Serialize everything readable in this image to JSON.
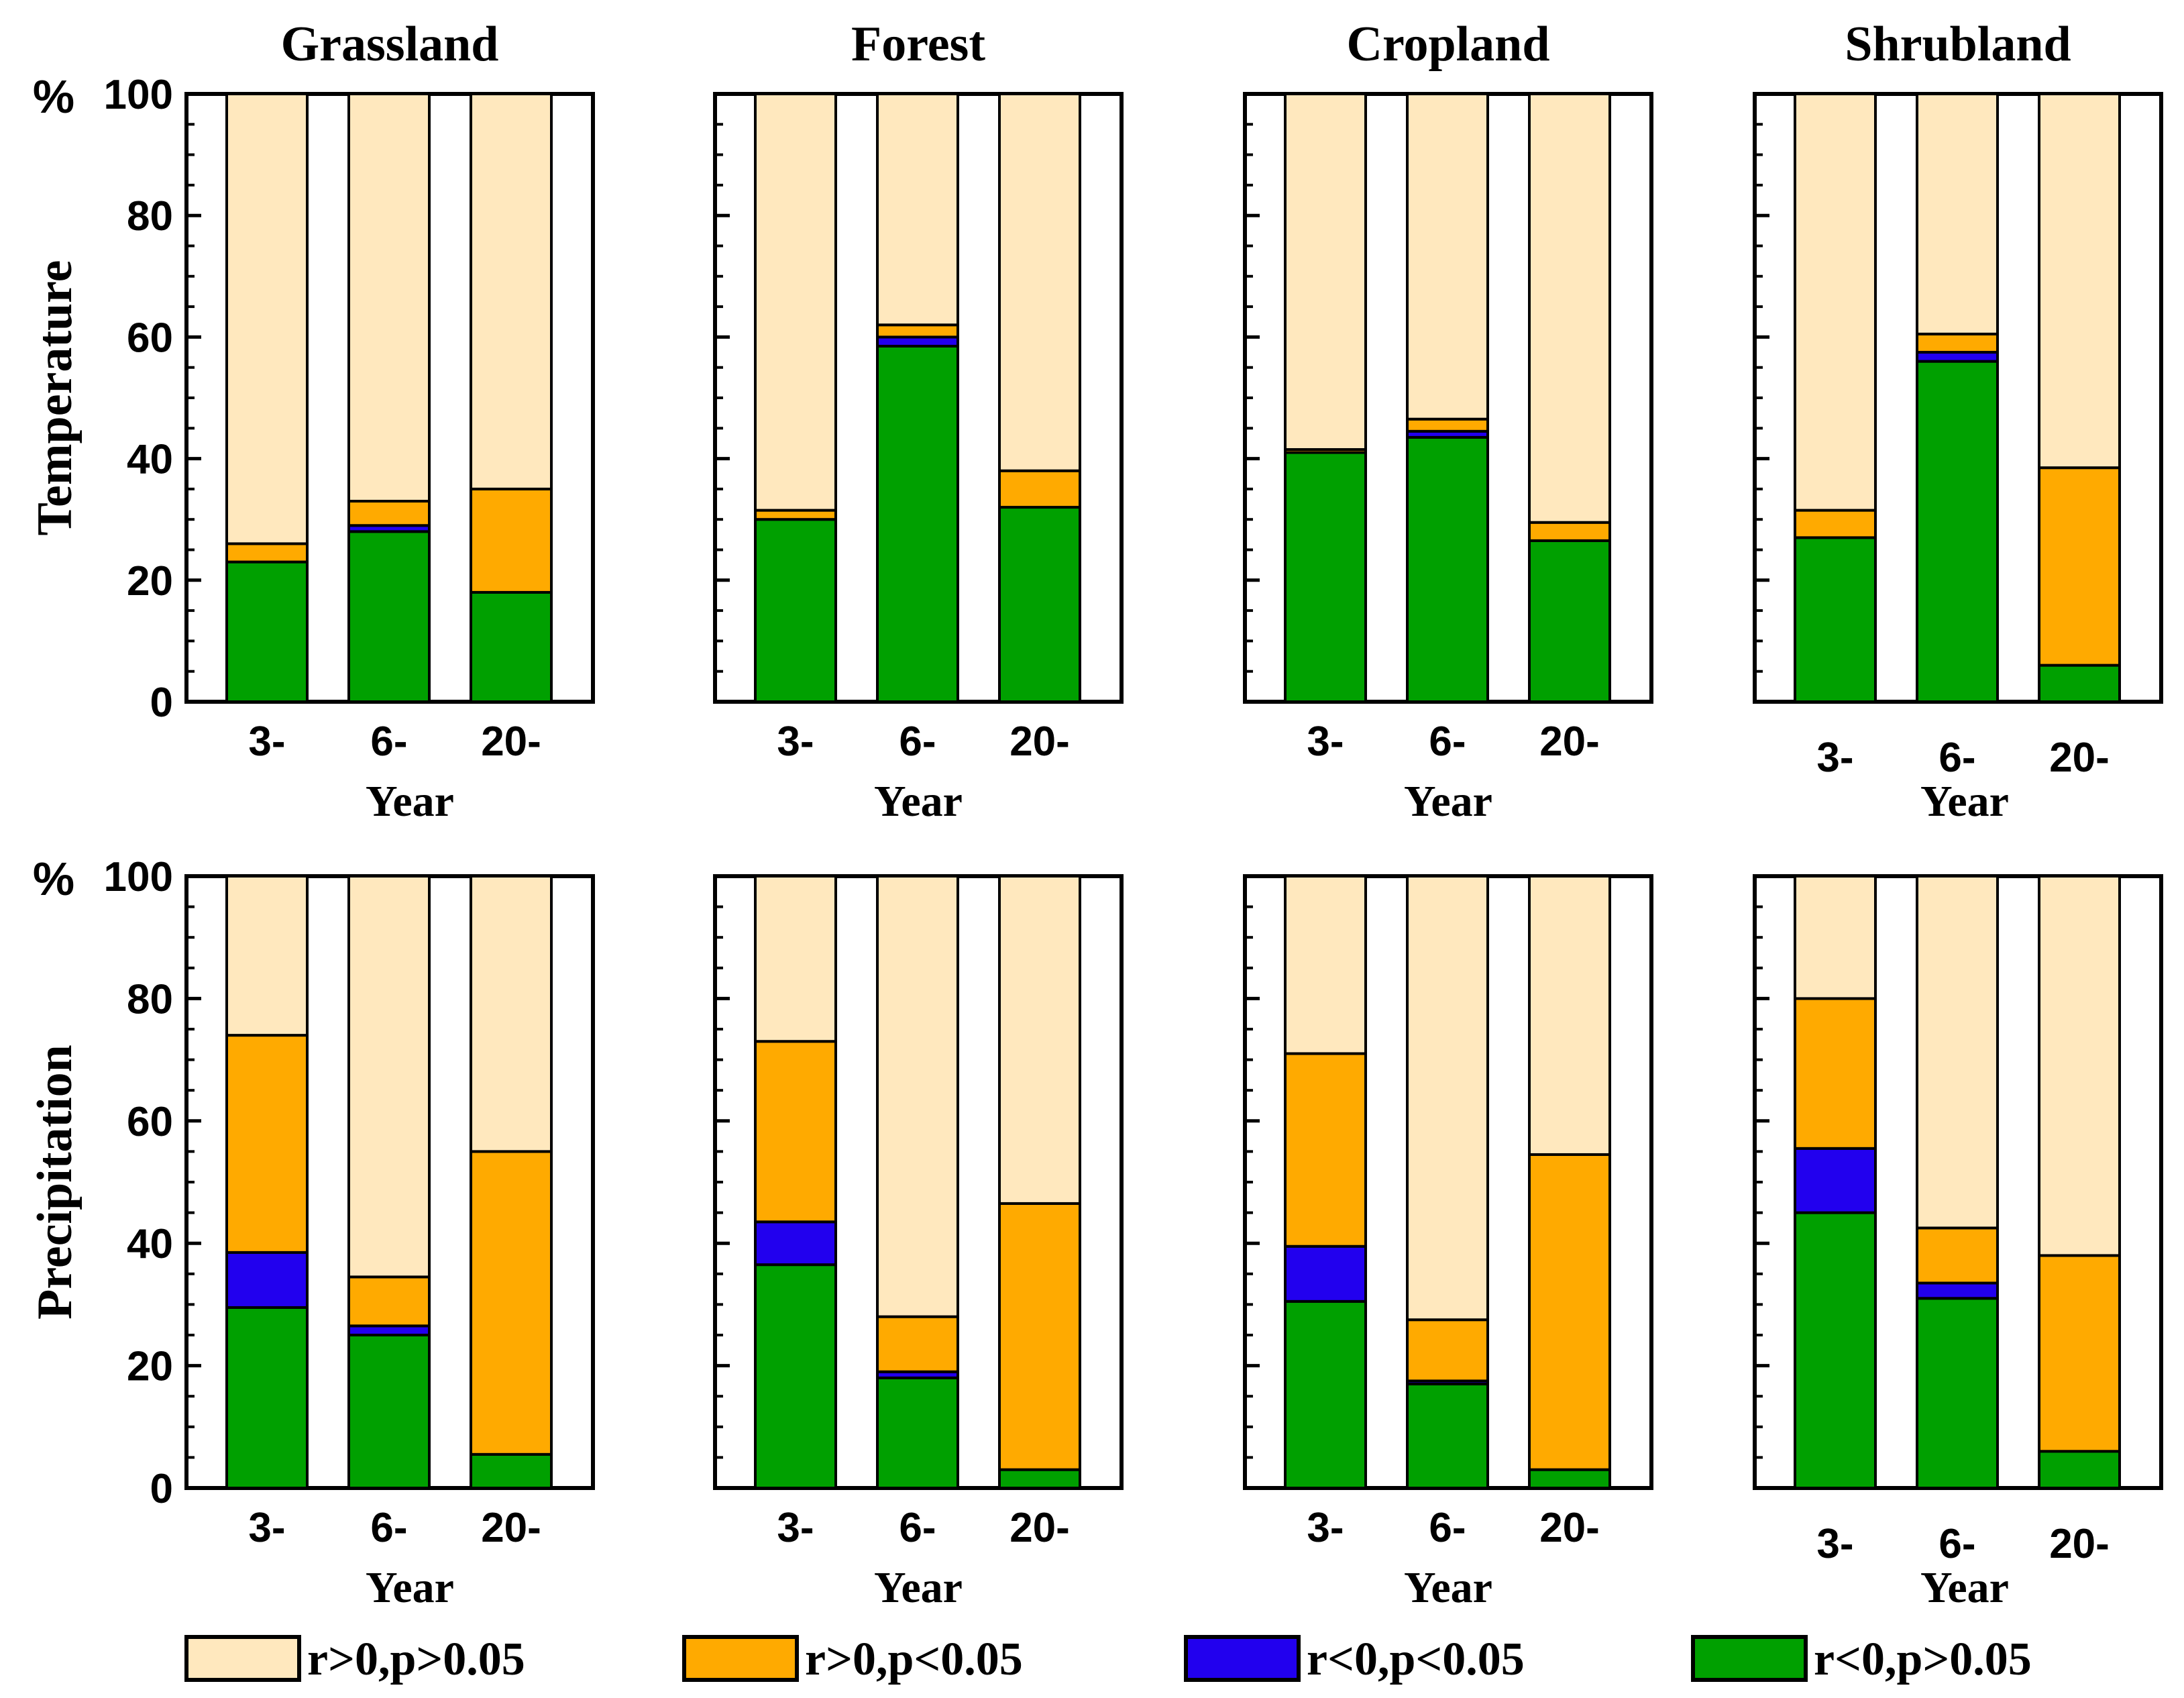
{
  "figure": {
    "legend": [
      {
        "key": "r_pos_ns",
        "label": "r>0,p>0.05",
        "color": "#FFE8BE"
      },
      {
        "key": "r_pos_sig",
        "label": "r>0,p<0.05",
        "color": "#FFAA00"
      },
      {
        "key": "r_neg_sig",
        "label": "r<0,p<0.05",
        "color": "#2200EE"
      },
      {
        "key": "r_neg_ns",
        "label": "r<0,p>0.05",
        "color": "#00A000"
      }
    ],
    "row_labels": [
      "Temperature",
      "Precipitation"
    ],
    "percent_symbol": "%"
  },
  "chart_data": [
    {
      "type": "bar",
      "stacked": true,
      "row": 0,
      "col": 0,
      "title": "Grassland",
      "ylabel": "Temperature",
      "xlabel": "Year",
      "categories": [
        "3-",
        "6-",
        "20-"
      ],
      "ylim": [
        0,
        100
      ],
      "yticks": [
        "0",
        "20",
        "40",
        "60",
        "80",
        "100"
      ],
      "series": [
        {
          "name": "r<0,p>0.05",
          "values": [
            23,
            28,
            18
          ]
        },
        {
          "name": "r<0,p<0.05",
          "values": [
            0,
            1,
            0
          ]
        },
        {
          "name": "r>0,p<0.05",
          "values": [
            3,
            4,
            17
          ]
        },
        {
          "name": "r>0,p>0.05",
          "values": [
            74,
            67,
            65
          ]
        }
      ]
    },
    {
      "type": "bar",
      "stacked": true,
      "row": 0,
      "col": 1,
      "title": "Forest",
      "xlabel": "Year",
      "categories": [
        "3-",
        "6-",
        "20-"
      ],
      "ylim": [
        0,
        100
      ],
      "series": [
        {
          "name": "r<0,p>0.05",
          "values": [
            30,
            58.5,
            32
          ]
        },
        {
          "name": "r<0,p<0.05",
          "values": [
            0,
            1.5,
            0
          ]
        },
        {
          "name": "r>0,p<0.05",
          "values": [
            1.5,
            2,
            6
          ]
        },
        {
          "name": "r>0,p>0.05",
          "values": [
            68.5,
            38,
            62
          ]
        }
      ]
    },
    {
      "type": "bar",
      "stacked": true,
      "row": 0,
      "col": 2,
      "title": "Cropland",
      "xlabel": "Year",
      "categories": [
        "3-",
        "6-",
        "20-"
      ],
      "ylim": [
        0,
        100
      ],
      "series": [
        {
          "name": "r<0,p>0.05",
          "values": [
            41,
            43.5,
            26.5
          ]
        },
        {
          "name": "r<0,p<0.05",
          "values": [
            0,
            1,
            0
          ]
        },
        {
          "name": "r>0,p<0.05",
          "values": [
            0.5,
            2,
            3
          ]
        },
        {
          "name": "r>0,p>0.05",
          "values": [
            58.5,
            53.5,
            70.5
          ]
        }
      ]
    },
    {
      "type": "bar",
      "stacked": true,
      "row": 0,
      "col": 3,
      "title": "Shrubland",
      "xlabel": "Year",
      "categories": [
        "3-",
        "6-",
        "20-"
      ],
      "ylim": [
        0,
        100
      ],
      "series": [
        {
          "name": "r<0,p>0.05",
          "values": [
            27,
            56,
            6
          ]
        },
        {
          "name": "r<0,p<0.05",
          "values": [
            0,
            1.5,
            0
          ]
        },
        {
          "name": "r>0,p<0.05",
          "values": [
            4.5,
            3,
            32.5
          ]
        },
        {
          "name": "r>0,p>0.05",
          "values": [
            68.5,
            39.5,
            61.5
          ]
        }
      ]
    },
    {
      "type": "bar",
      "stacked": true,
      "row": 1,
      "col": 0,
      "ylabel": "Precipitation",
      "xlabel": "Year",
      "categories": [
        "3-",
        "6-",
        "20-"
      ],
      "ylim": [
        0,
        100
      ],
      "yticks": [
        "0",
        "20",
        "40",
        "60",
        "80",
        "100"
      ],
      "series": [
        {
          "name": "r<0,p>0.05",
          "values": [
            29.5,
            25,
            5.5
          ]
        },
        {
          "name": "r<0,p<0.05",
          "values": [
            9,
            1.5,
            0
          ]
        },
        {
          "name": "r>0,p<0.05",
          "values": [
            35.5,
            8,
            49.5
          ]
        },
        {
          "name": "r>0,p>0.05",
          "values": [
            26,
            65.5,
            45
          ]
        }
      ]
    },
    {
      "type": "bar",
      "stacked": true,
      "row": 1,
      "col": 1,
      "xlabel": "Year",
      "categories": [
        "3-",
        "6-",
        "20-"
      ],
      "ylim": [
        0,
        100
      ],
      "series": [
        {
          "name": "r<0,p>0.05",
          "values": [
            36.5,
            18,
            3
          ]
        },
        {
          "name": "r<0,p<0.05",
          "values": [
            7,
            1,
            0
          ]
        },
        {
          "name": "r>0,p<0.05",
          "values": [
            29.5,
            9,
            43.5
          ]
        },
        {
          "name": "r>0,p>0.05",
          "values": [
            27,
            72,
            53.5
          ]
        }
      ]
    },
    {
      "type": "bar",
      "stacked": true,
      "row": 1,
      "col": 2,
      "xlabel": "Year",
      "categories": [
        "3-",
        "6-",
        "20-"
      ],
      "ylim": [
        0,
        100
      ],
      "series": [
        {
          "name": "r<0,p>0.05",
          "values": [
            30.5,
            17,
            3
          ]
        },
        {
          "name": "r<0,p<0.05",
          "values": [
            9,
            0.5,
            0
          ]
        },
        {
          "name": "r>0,p<0.05",
          "values": [
            31.5,
            10,
            51.5
          ]
        },
        {
          "name": "r>0,p>0.05",
          "values": [
            29,
            72.5,
            45.5
          ]
        }
      ]
    },
    {
      "type": "bar",
      "stacked": true,
      "row": 1,
      "col": 3,
      "xlabel": "Year",
      "categories": [
        "3-",
        "6-",
        "20-"
      ],
      "ylim": [
        0,
        100
      ],
      "series": [
        {
          "name": "r<0,p>0.05",
          "values": [
            45,
            31,
            6
          ]
        },
        {
          "name": "r<0,p<0.05",
          "values": [
            10.5,
            2.5,
            0
          ]
        },
        {
          "name": "r>0,p<0.05",
          "values": [
            24.5,
            9,
            32
          ]
        },
        {
          "name": "r>0,p>0.05",
          "values": [
            20,
            57.5,
            62
          ]
        }
      ]
    }
  ]
}
